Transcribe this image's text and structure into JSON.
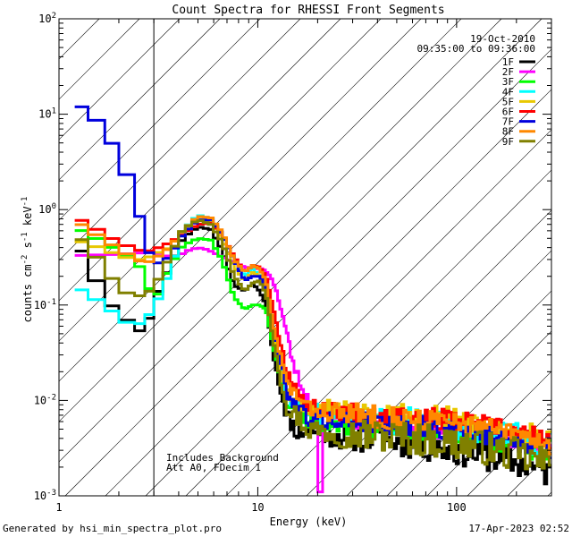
{
  "chart_data": {
    "type": "line",
    "title": "Count Spectra for RHESSI Front Segments",
    "xlabel": "Energy (keV)",
    "ylabel_parts": {
      "base": "counts cm",
      "exp1": "-2",
      "mid": " s",
      "exp2": "-1",
      "end": " keV",
      "exp3": "-1"
    },
    "x_scale": "log",
    "y_scale": "log",
    "xlim": [
      1,
      300
    ],
    "ylim": [
      0.001,
      100
    ],
    "x_ticks": [
      {
        "value": 1,
        "label": "1"
      },
      {
        "value": 10,
        "label": "10"
      },
      {
        "value": 100,
        "label": "100"
      }
    ],
    "y_ticks": [
      {
        "value": 0.001,
        "base": "10",
        "exp": "-3"
      },
      {
        "value": 0.01,
        "base": "10",
        "exp": "-2"
      },
      {
        "value": 0.1,
        "base": "10",
        "exp": "-1"
      },
      {
        "value": 1,
        "base": "10",
        "exp": "0"
      },
      {
        "value": 10,
        "base": "10",
        "exp": "1"
      },
      {
        "value": 100,
        "base": "10",
        "exp": "2"
      }
    ],
    "excluded_region_keV": [
      1,
      3
    ],
    "date": "19-Oct-2010",
    "time_range": "09:35:00 to 09:36:00",
    "notes": [
      "Includes Background",
      "Att A0, FDecim 1"
    ],
    "legend_position": "top-right",
    "series": [
      {
        "name": "1F",
        "color": "#000000",
        "seed": 11,
        "noise": 0.3,
        "dip": 0.0,
        "anchors": [
          [
            1.2,
            0.5
          ],
          [
            1.4,
            0.27
          ],
          [
            1.7,
            0.12
          ],
          [
            2.0,
            0.08
          ],
          [
            2.4,
            0.06
          ],
          [
            2.7,
            0.048
          ],
          [
            3.0,
            0.11
          ],
          [
            3.6,
            0.25
          ],
          [
            4.2,
            0.5
          ],
          [
            5.0,
            0.66
          ],
          [
            5.8,
            0.62
          ],
          [
            6.6,
            0.38
          ],
          [
            7.6,
            0.16
          ],
          [
            8.6,
            0.14
          ],
          [
            9.4,
            0.17
          ],
          [
            10.2,
            0.14
          ],
          [
            11.0,
            0.1
          ],
          [
            12.0,
            0.028
          ],
          [
            14.0,
            0.007
          ],
          [
            16.0,
            0.0045
          ],
          [
            18.0,
            0.005
          ],
          [
            25.0,
            0.0042
          ],
          [
            40.0,
            0.004
          ],
          [
            70.0,
            0.0033
          ],
          [
            120.0,
            0.0028
          ],
          [
            200.0,
            0.0022
          ],
          [
            300.0,
            0.0017
          ]
        ]
      },
      {
        "name": "2F",
        "color": "#ff00ff",
        "seed": 23,
        "noise": 0.18,
        "dip": 0.0011,
        "anchors": [
          [
            1.2,
            0.33
          ],
          [
            2.0,
            0.34
          ],
          [
            3.0,
            0.36
          ],
          [
            3.8,
            0.31
          ],
          [
            4.4,
            0.37
          ],
          [
            5.0,
            0.4
          ],
          [
            5.6,
            0.38
          ],
          [
            6.4,
            0.33
          ],
          [
            7.6,
            0.28
          ],
          [
            8.6,
            0.25
          ],
          [
            9.6,
            0.24
          ],
          [
            10.6,
            0.24
          ],
          [
            11.6,
            0.2
          ],
          [
            12.6,
            0.13
          ],
          [
            14.0,
            0.05
          ],
          [
            15.0,
            0.025
          ],
          [
            17.0,
            0.012
          ],
          [
            20.0,
            0.0075
          ],
          [
            30.0,
            0.006
          ],
          [
            50.0,
            0.0055
          ],
          [
            80.0,
            0.005
          ],
          [
            130.0,
            0.0045
          ],
          [
            200.0,
            0.0038
          ],
          [
            300.0,
            0.0032
          ]
        ]
      },
      {
        "name": "3F",
        "color": "#00ff00",
        "seed": 37,
        "noise": 0.25,
        "dip": 0.0,
        "anchors": [
          [
            1.2,
            0.66
          ],
          [
            1.4,
            0.55
          ],
          [
            1.7,
            0.45
          ],
          [
            2.0,
            0.36
          ],
          [
            2.4,
            0.29
          ],
          [
            2.7,
            0.22
          ],
          [
            3.0,
            0.1
          ],
          [
            3.6,
            0.25
          ],
          [
            4.2,
            0.42
          ],
          [
            5.0,
            0.5
          ],
          [
            5.8,
            0.48
          ],
          [
            6.6,
            0.3
          ],
          [
            7.6,
            0.12
          ],
          [
            8.6,
            0.09
          ],
          [
            9.4,
            0.1
          ],
          [
            10.2,
            0.1
          ],
          [
            11.0,
            0.09
          ],
          [
            12.0,
            0.035
          ],
          [
            14.0,
            0.01
          ],
          [
            18.0,
            0.006
          ],
          [
            30.0,
            0.0055
          ],
          [
            60.0,
            0.005
          ],
          [
            120.0,
            0.0043
          ],
          [
            200.0,
            0.0035
          ],
          [
            300.0,
            0.0028
          ]
        ]
      },
      {
        "name": "4F",
        "color": "#00ffff",
        "seed": 41,
        "noise": 0.28,
        "dip": 0.0,
        "anchors": [
          [
            1.2,
            0.16
          ],
          [
            1.4,
            0.13
          ],
          [
            1.7,
            0.1
          ],
          [
            2.0,
            0.075
          ],
          [
            2.4,
            0.058
          ],
          [
            2.7,
            0.07
          ],
          [
            3.0,
            0.09
          ],
          [
            3.6,
            0.22
          ],
          [
            4.2,
            0.6
          ],
          [
            5.0,
            0.88
          ],
          [
            5.8,
            0.8
          ],
          [
            6.6,
            0.55
          ],
          [
            7.6,
            0.3
          ],
          [
            8.6,
            0.2
          ],
          [
            9.4,
            0.24
          ],
          [
            10.2,
            0.2
          ],
          [
            11.0,
            0.14
          ],
          [
            12.0,
            0.04
          ],
          [
            14.0,
            0.012
          ],
          [
            18.0,
            0.0075
          ],
          [
            30.0,
            0.0068
          ],
          [
            60.0,
            0.006
          ],
          [
            120.0,
            0.0052
          ],
          [
            200.0,
            0.0042
          ],
          [
            300.0,
            0.0033
          ]
        ]
      },
      {
        "name": "5F",
        "color": "#e8c800",
        "seed": 53,
        "noise": 0.24,
        "dip": 0.0,
        "anchors": [
          [
            1.2,
            0.48
          ],
          [
            1.4,
            0.44
          ],
          [
            1.7,
            0.38
          ],
          [
            2.0,
            0.33
          ],
          [
            2.4,
            0.3
          ],
          [
            2.7,
            0.3
          ],
          [
            3.0,
            0.34
          ],
          [
            3.6,
            0.4
          ],
          [
            4.2,
            0.6
          ],
          [
            5.0,
            0.8
          ],
          [
            5.8,
            0.75
          ],
          [
            6.6,
            0.5
          ],
          [
            7.6,
            0.25
          ],
          [
            8.6,
            0.18
          ],
          [
            9.4,
            0.22
          ],
          [
            10.2,
            0.2
          ],
          [
            11.0,
            0.15
          ],
          [
            12.0,
            0.05
          ],
          [
            14.0,
            0.012
          ],
          [
            18.0,
            0.0085
          ],
          [
            30.0,
            0.008
          ],
          [
            60.0,
            0.0072
          ],
          [
            120.0,
            0.006
          ],
          [
            200.0,
            0.0048
          ],
          [
            300.0,
            0.0038
          ]
        ]
      },
      {
        "name": "6F",
        "color": "#ff0000",
        "seed": 67,
        "noise": 0.22,
        "dip": 0.0,
        "anchors": [
          [
            1.2,
            0.85
          ],
          [
            1.4,
            0.7
          ],
          [
            1.7,
            0.55
          ],
          [
            2.0,
            0.45
          ],
          [
            2.4,
            0.39
          ],
          [
            2.7,
            0.36
          ],
          [
            3.0,
            0.38
          ],
          [
            3.6,
            0.45
          ],
          [
            4.2,
            0.55
          ],
          [
            5.0,
            0.7
          ],
          [
            5.8,
            0.72
          ],
          [
            6.6,
            0.55
          ],
          [
            7.6,
            0.32
          ],
          [
            8.6,
            0.22
          ],
          [
            9.4,
            0.26
          ],
          [
            10.2,
            0.25
          ],
          [
            11.0,
            0.2
          ],
          [
            12.0,
            0.09
          ],
          [
            14.0,
            0.02
          ],
          [
            18.0,
            0.0085
          ],
          [
            30.0,
            0.0075
          ],
          [
            60.0,
            0.0068
          ],
          [
            120.0,
            0.0058
          ],
          [
            200.0,
            0.0046
          ],
          [
            300.0,
            0.0036
          ]
        ]
      },
      {
        "name": "7F",
        "color": "#0000dd",
        "seed": 79,
        "noise": 0.22,
        "dip": 0.0,
        "anchors": [
          [
            1.2,
            13.0
          ],
          [
            1.4,
            11.0
          ],
          [
            1.7,
            6.8
          ],
          [
            2.0,
            3.6
          ],
          [
            2.4,
            1.5
          ],
          [
            2.7,
            0.48
          ],
          [
            3.0,
            0.26
          ],
          [
            3.6,
            0.32
          ],
          [
            4.2,
            0.55
          ],
          [
            5.0,
            0.78
          ],
          [
            5.8,
            0.78
          ],
          [
            6.6,
            0.55
          ],
          [
            7.6,
            0.3
          ],
          [
            8.6,
            0.18
          ],
          [
            9.4,
            0.2
          ],
          [
            10.2,
            0.2
          ],
          [
            11.0,
            0.16
          ],
          [
            12.0,
            0.06
          ],
          [
            14.0,
            0.012
          ],
          [
            18.0,
            0.0065
          ],
          [
            30.0,
            0.006
          ],
          [
            60.0,
            0.0054
          ],
          [
            120.0,
            0.0046
          ],
          [
            200.0,
            0.0038
          ],
          [
            300.0,
            0.003
          ]
        ]
      },
      {
        "name": "8F",
        "color": "#ff8800",
        "seed": 83,
        "noise": 0.24,
        "dip": 0.0,
        "anchors": [
          [
            1.2,
            0.78
          ],
          [
            1.4,
            0.62
          ],
          [
            1.7,
            0.48
          ],
          [
            2.0,
            0.38
          ],
          [
            2.4,
            0.31
          ],
          [
            2.7,
            0.27
          ],
          [
            3.0,
            0.3
          ],
          [
            3.6,
            0.4
          ],
          [
            4.2,
            0.6
          ],
          [
            5.0,
            0.85
          ],
          [
            5.8,
            0.82
          ],
          [
            6.6,
            0.58
          ],
          [
            7.6,
            0.3
          ],
          [
            8.6,
            0.22
          ],
          [
            9.4,
            0.26
          ],
          [
            10.2,
            0.24
          ],
          [
            11.0,
            0.18
          ],
          [
            12.0,
            0.06
          ],
          [
            14.0,
            0.015
          ],
          [
            18.0,
            0.008
          ],
          [
            30.0,
            0.0072
          ],
          [
            60.0,
            0.0064
          ],
          [
            120.0,
            0.0054
          ],
          [
            200.0,
            0.0043
          ],
          [
            300.0,
            0.0034
          ]
        ]
      },
      {
        "name": "9F",
        "color": "#808000",
        "seed": 97,
        "noise": 0.34,
        "dip": 0.0,
        "anchors": [
          [
            1.2,
            0.56
          ],
          [
            1.4,
            0.42
          ],
          [
            1.7,
            0.24
          ],
          [
            2.0,
            0.15
          ],
          [
            2.4,
            0.12
          ],
          [
            2.7,
            0.13
          ],
          [
            3.0,
            0.15
          ],
          [
            3.6,
            0.32
          ],
          [
            4.2,
            0.62
          ],
          [
            5.0,
            0.78
          ],
          [
            5.8,
            0.7
          ],
          [
            6.6,
            0.46
          ],
          [
            7.6,
            0.2
          ],
          [
            8.6,
            0.14
          ],
          [
            9.4,
            0.17
          ],
          [
            10.2,
            0.18
          ],
          [
            11.0,
            0.13
          ],
          [
            12.0,
            0.04
          ],
          [
            14.0,
            0.009
          ],
          [
            18.0,
            0.005
          ],
          [
            30.0,
            0.0045
          ],
          [
            60.0,
            0.004
          ],
          [
            120.0,
            0.0034
          ],
          [
            200.0,
            0.0027
          ],
          [
            300.0,
            0.0021
          ]
        ]
      }
    ]
  },
  "footer": {
    "generated_by": "Generated by hsi_min_spectra_plot.pro",
    "timestamp": "17-Apr-2023 02:52"
  }
}
